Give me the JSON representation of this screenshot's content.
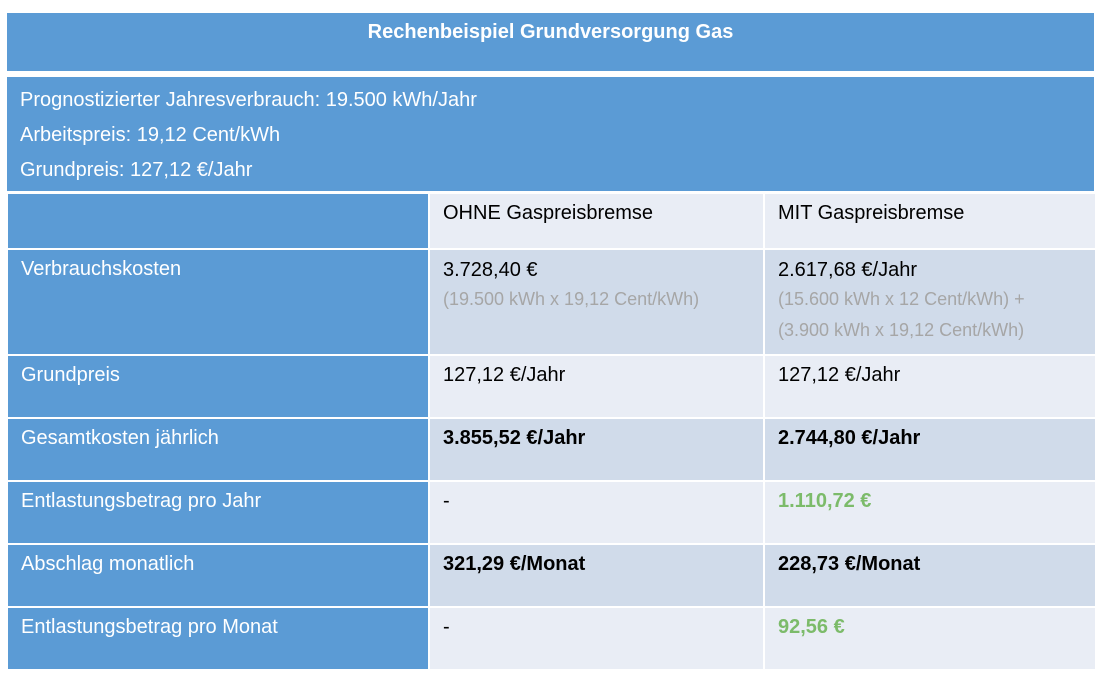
{
  "title": "Rechenbeispiel Grundversorgung Gas",
  "info": {
    "line1": "Prognostizierter Jahresverbrauch: 19.500 kWh/Jahr",
    "line2": "Arbeitspreis: 19,12 Cent/kWh",
    "line3": "Grundpreis: 127,12 €/Jahr"
  },
  "columns": {
    "empty": "",
    "ohne": "OHNE Gaspreisbremse",
    "mit": "MIT Gaspreisbremse"
  },
  "rows": {
    "verbrauch": {
      "label": "Verbrauchskosten",
      "ohne": "3.728,40 €",
      "ohne_sub": "(19.500 kWh x 19,12 Cent/kWh)",
      "mit": "2.617,68 €/Jahr",
      "mit_sub1": "(15.600 kWh x 12 Cent/kWh) +",
      "mit_sub2": "(3.900 kWh x 19,12 Cent/kWh)"
    },
    "grundpreis": {
      "label": "Grundpreis",
      "ohne": "127,12 €/Jahr",
      "mit": "127,12 €/Jahr"
    },
    "gesamt": {
      "label": "Gesamtkosten jährlich",
      "ohne": "3.855,52 €/Jahr",
      "mit": "2.744,80 €/Jahr"
    },
    "entlastung_jahr": {
      "label": "Entlastungsbetrag pro Jahr",
      "ohne": "-",
      "mit": "1.110,72 €"
    },
    "abschlag": {
      "label": "Abschlag monatlich",
      "ohne": "321,29 €/Monat",
      "mit": "228,73 €/Monat"
    },
    "entlastung_monat": {
      "label": "Entlastungsbetrag pro Monat",
      "ohne": "-",
      "mit": "92,56 €"
    }
  },
  "colors": {
    "header_blue": "#5b9bd5",
    "row_light": "#e9edf5",
    "row_dark": "#d0dbea",
    "savings_green": "#7cbb6a",
    "note_gray": "#a6a6a6"
  }
}
